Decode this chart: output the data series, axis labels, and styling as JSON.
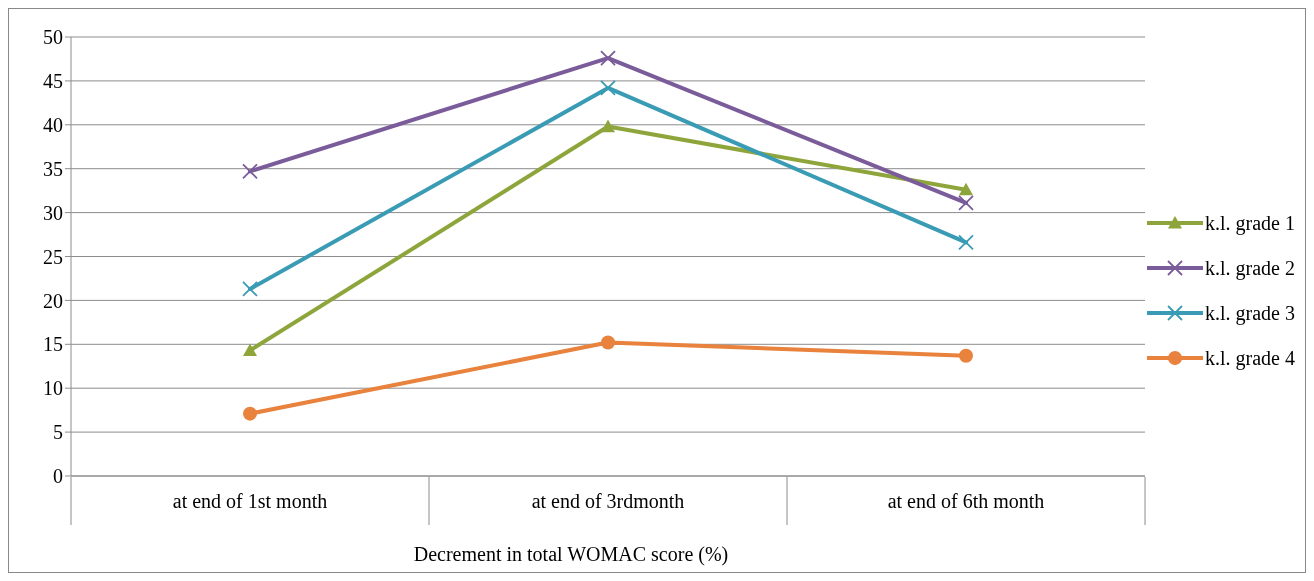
{
  "chart_data": {
    "type": "line",
    "xlabel": "Decrement in total WOMAC score (%)",
    "categories": [
      "at end of 1st month",
      "at end of 3rdmonth",
      "at end of 6th month"
    ],
    "series": [
      {
        "name": "k.l. grade 1",
        "color": "#8ea53c",
        "marker": "triangle",
        "values": [
          14.3,
          39.8,
          32.6
        ]
      },
      {
        "name": "k.l. grade 2",
        "color": "#7b5c9a",
        "marker": "cross",
        "values": [
          34.7,
          47.6,
          31.1
        ]
      },
      {
        "name": "k.l. grade 3",
        "color": "#3a9bb5",
        "marker": "cross",
        "values": [
          21.3,
          44.2,
          26.6
        ]
      },
      {
        "name": "k.l. grade 4",
        "color": "#e8823d",
        "marker": "circle",
        "values": [
          7.1,
          15.2,
          13.7
        ]
      }
    ],
    "ylim": [
      0,
      50
    ],
    "yticks": [
      0,
      5,
      10,
      15,
      20,
      25,
      30,
      35,
      40,
      45,
      50
    ],
    "grid": "y",
    "legend": "right",
    "line_style": "solid"
  }
}
